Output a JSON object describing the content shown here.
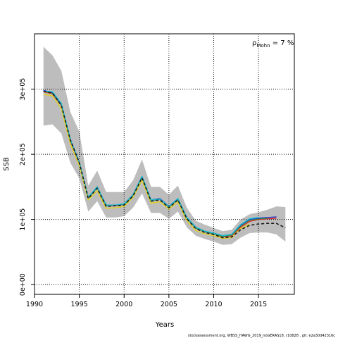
{
  "chart_data": {
    "type": "line",
    "xlabel": "Years",
    "ylabel": "SSB",
    "xlim": [
      1990,
      2019
    ],
    "ylim": [
      -15000,
      385000
    ],
    "x_ticks": [
      1990,
      1995,
      2000,
      2005,
      2010,
      2015
    ],
    "y_ticks": [
      0,
      100000,
      200000,
      300000
    ],
    "y_tick_labels": [
      "0e+00",
      "1e+05",
      "2e+05",
      "3e+05"
    ],
    "grid": true,
    "annotation": {
      "base": "ρ",
      "sub": "Mohn",
      "text": " = 7 %"
    },
    "footer": "stockassessment.org,  WBSS_HAWG_2019_noGERAS18,  r10828 ,  git:  e2a30d42316c",
    "confidence_band": {
      "x": [
        1991,
        1992,
        1993,
        1994,
        1995,
        1996,
        1997,
        1998,
        1999,
        2000,
        2001,
        2002,
        2003,
        2004,
        2005,
        2006,
        2007,
        2008,
        2009,
        2010,
        2011,
        2012,
        2013,
        2014,
        2015,
        2016,
        2017,
        2018
      ],
      "upper": [
        365000,
        352000,
        328000,
        265000,
        235000,
        152000,
        175000,
        142000,
        142000,
        142000,
        160000,
        192000,
        150000,
        150000,
        138000,
        152000,
        118000,
        98000,
        92000,
        87000,
        82000,
        84000,
        100000,
        108000,
        111000,
        115000,
        120000,
        119000
      ],
      "lower": [
        244000,
        246000,
        232000,
        187000,
        163000,
        112000,
        128000,
        103000,
        103000,
        105000,
        118000,
        140000,
        110000,
        110000,
        101000,
        112000,
        88000,
        75000,
        70000,
        66000,
        61000,
        62000,
        72000,
        79000,
        80000,
        80000,
        77000,
        66000
      ]
    },
    "series": [
      {
        "color": "#1a1a1a",
        "dash": "4,3",
        "x": [
          1991,
          1992,
          1993,
          1994,
          1995,
          1996,
          1997,
          1998,
          1999,
          2000,
          2001,
          2002,
          2003,
          2004,
          2005,
          2006,
          2007,
          2008,
          2009,
          2010,
          2011,
          2012,
          2013,
          2014,
          2015,
          2016,
          2017,
          2018
        ],
        "values": [
          297000,
          294000,
          275000,
          222000,
          187000,
          132000,
          148000,
          120000,
          121000,
          122000,
          136000,
          164000,
          128000,
          130000,
          118000,
          130000,
          101000,
          86000,
          80000,
          77000,
          72000,
          73000,
          84000,
          91000,
          93000,
          94000,
          94000,
          87000
        ]
      },
      {
        "color": "#d62728",
        "x": [
          1991,
          1992,
          1993,
          1994,
          1995,
          1996,
          1997,
          1998,
          1999,
          2000,
          2001,
          2002,
          2003,
          2004,
          2005,
          2006,
          2007,
          2008,
          2009,
          2010,
          2011,
          2012,
          2013,
          2014,
          2015,
          2016,
          2017
        ],
        "values": [
          296000,
          293000,
          275000,
          221000,
          187000,
          133000,
          149000,
          121000,
          121000,
          123000,
          137000,
          165000,
          129000,
          131000,
          119000,
          131000,
          102000,
          87000,
          81000,
          78000,
          73000,
          75000,
          88000,
          97000,
          100000,
          101000,
          102000
        ]
      },
      {
        "color": "#2ca02c",
        "x": [
          1991,
          1992,
          1993,
          1994,
          1995,
          1996,
          1997,
          1998,
          1999,
          2000,
          2001,
          2002,
          2003,
          2004,
          2005,
          2006,
          2007,
          2008,
          2009,
          2010,
          2011,
          2012,
          2013,
          2014,
          2015,
          2016
        ],
        "values": [
          297000,
          294000,
          276000,
          222000,
          188000,
          133000,
          149000,
          121000,
          122000,
          123000,
          137000,
          165000,
          129000,
          131000,
          119000,
          131000,
          102000,
          87000,
          81000,
          78000,
          74000,
          76000,
          90000,
          99000,
          101000,
          102000
        ]
      },
      {
        "color": "#1f3fd6",
        "x": [
          1991,
          1992,
          1993,
          1994,
          1995,
          1996,
          1997,
          1998,
          1999,
          2000,
          2001,
          2002,
          2003,
          2004,
          2005,
          2006,
          2007,
          2008,
          2009,
          2010,
          2011,
          2012,
          2013,
          2014,
          2015,
          2016,
          2017
        ],
        "values": [
          298000,
          295000,
          277000,
          223000,
          188000,
          134000,
          150000,
          122000,
          122000,
          124000,
          138000,
          166000,
          130000,
          132000,
          120000,
          132000,
          103000,
          88000,
          82000,
          79000,
          75000,
          77000,
          91000,
          100000,
          102000,
          103000,
          104000
        ]
      },
      {
        "color": "#17becf",
        "x": [
          1991,
          1992,
          1993,
          1994,
          1995,
          1996,
          1997,
          1998,
          1999,
          2000,
          2001,
          2002,
          2003,
          2004,
          2005,
          2006,
          2007,
          2008,
          2009,
          2010,
          2011,
          2012,
          2013,
          2014,
          2015
        ],
        "values": [
          297000,
          296000,
          278000,
          223000,
          188000,
          134000,
          150000,
          122000,
          122000,
          124000,
          138000,
          166000,
          130000,
          131000,
          120000,
          132000,
          103000,
          88000,
          82000,
          79000,
          75000,
          77000,
          92000,
          101000,
          103000
        ]
      },
      {
        "color": "#e0d020",
        "x": [
          1991,
          1992,
          1993,
          1994,
          1995,
          1996,
          1997,
          1998,
          1999,
          2000,
          2001,
          2002,
          2003,
          2004,
          2005,
          2006,
          2007,
          2008,
          2009,
          2010,
          2011,
          2012,
          2013,
          2014
        ],
        "values": [
          292000,
          290000,
          270000,
          216000,
          183000,
          130000,
          144000,
          117000,
          118000,
          120000,
          134000,
          160000,
          125000,
          127000,
          116000,
          127000,
          98000,
          83000,
          78000,
          75000,
          71000,
          72000,
          86000,
          93000
        ]
      }
    ]
  }
}
